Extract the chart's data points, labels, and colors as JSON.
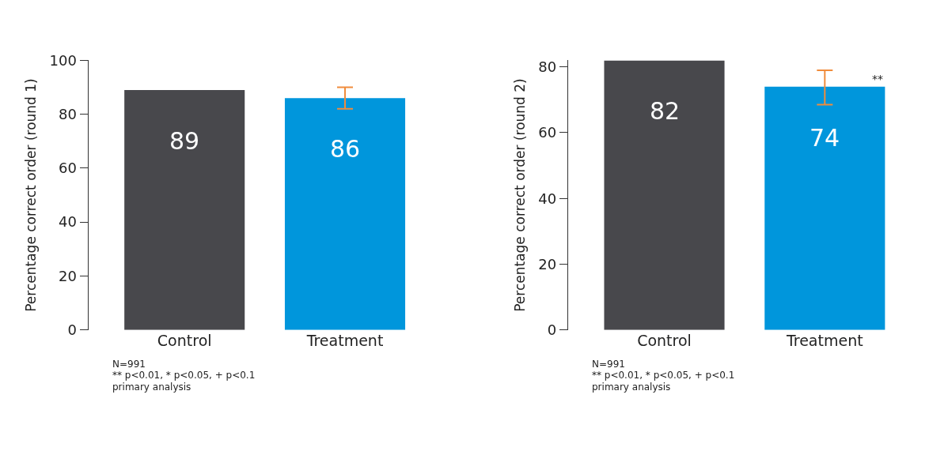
{
  "chart_data": [
    {
      "type": "bar",
      "ylabel": "Percentage correct order (round 1)",
      "categories": [
        "Control",
        "Treatment"
      ],
      "values": [
        89,
        86
      ],
      "colors": [
        "#48484c",
        "#0096dc"
      ],
      "errors": [
        null,
        [
          82,
          90
        ]
      ],
      "ylim": [
        0,
        100
      ],
      "yticks": [
        0,
        20,
        40,
        60,
        80,
        100
      ],
      "data_labels": true,
      "annotations": [
        "N=991",
        "** p<0.01, * p<0.05, + p<0.1",
        "primary analysis"
      ]
    },
    {
      "type": "bar",
      "ylabel": "Percentage correct order (round 2)",
      "categories": [
        "Control",
        "Treatment"
      ],
      "values": [
        82,
        74
      ],
      "colors": [
        "#48484c",
        "#0096dc"
      ],
      "errors": [
        null,
        [
          68.5,
          79
        ]
      ],
      "ylim": [
        0,
        82
      ],
      "yticks": [
        0,
        20,
        40,
        60,
        80
      ],
      "data_labels": true,
      "annotations": [
        {
          "text": "**",
          "y": 74
        },
        "N=991",
        "** p<0.01, * p<0.05, + p<0.1",
        "primary analysis"
      ]
    }
  ]
}
